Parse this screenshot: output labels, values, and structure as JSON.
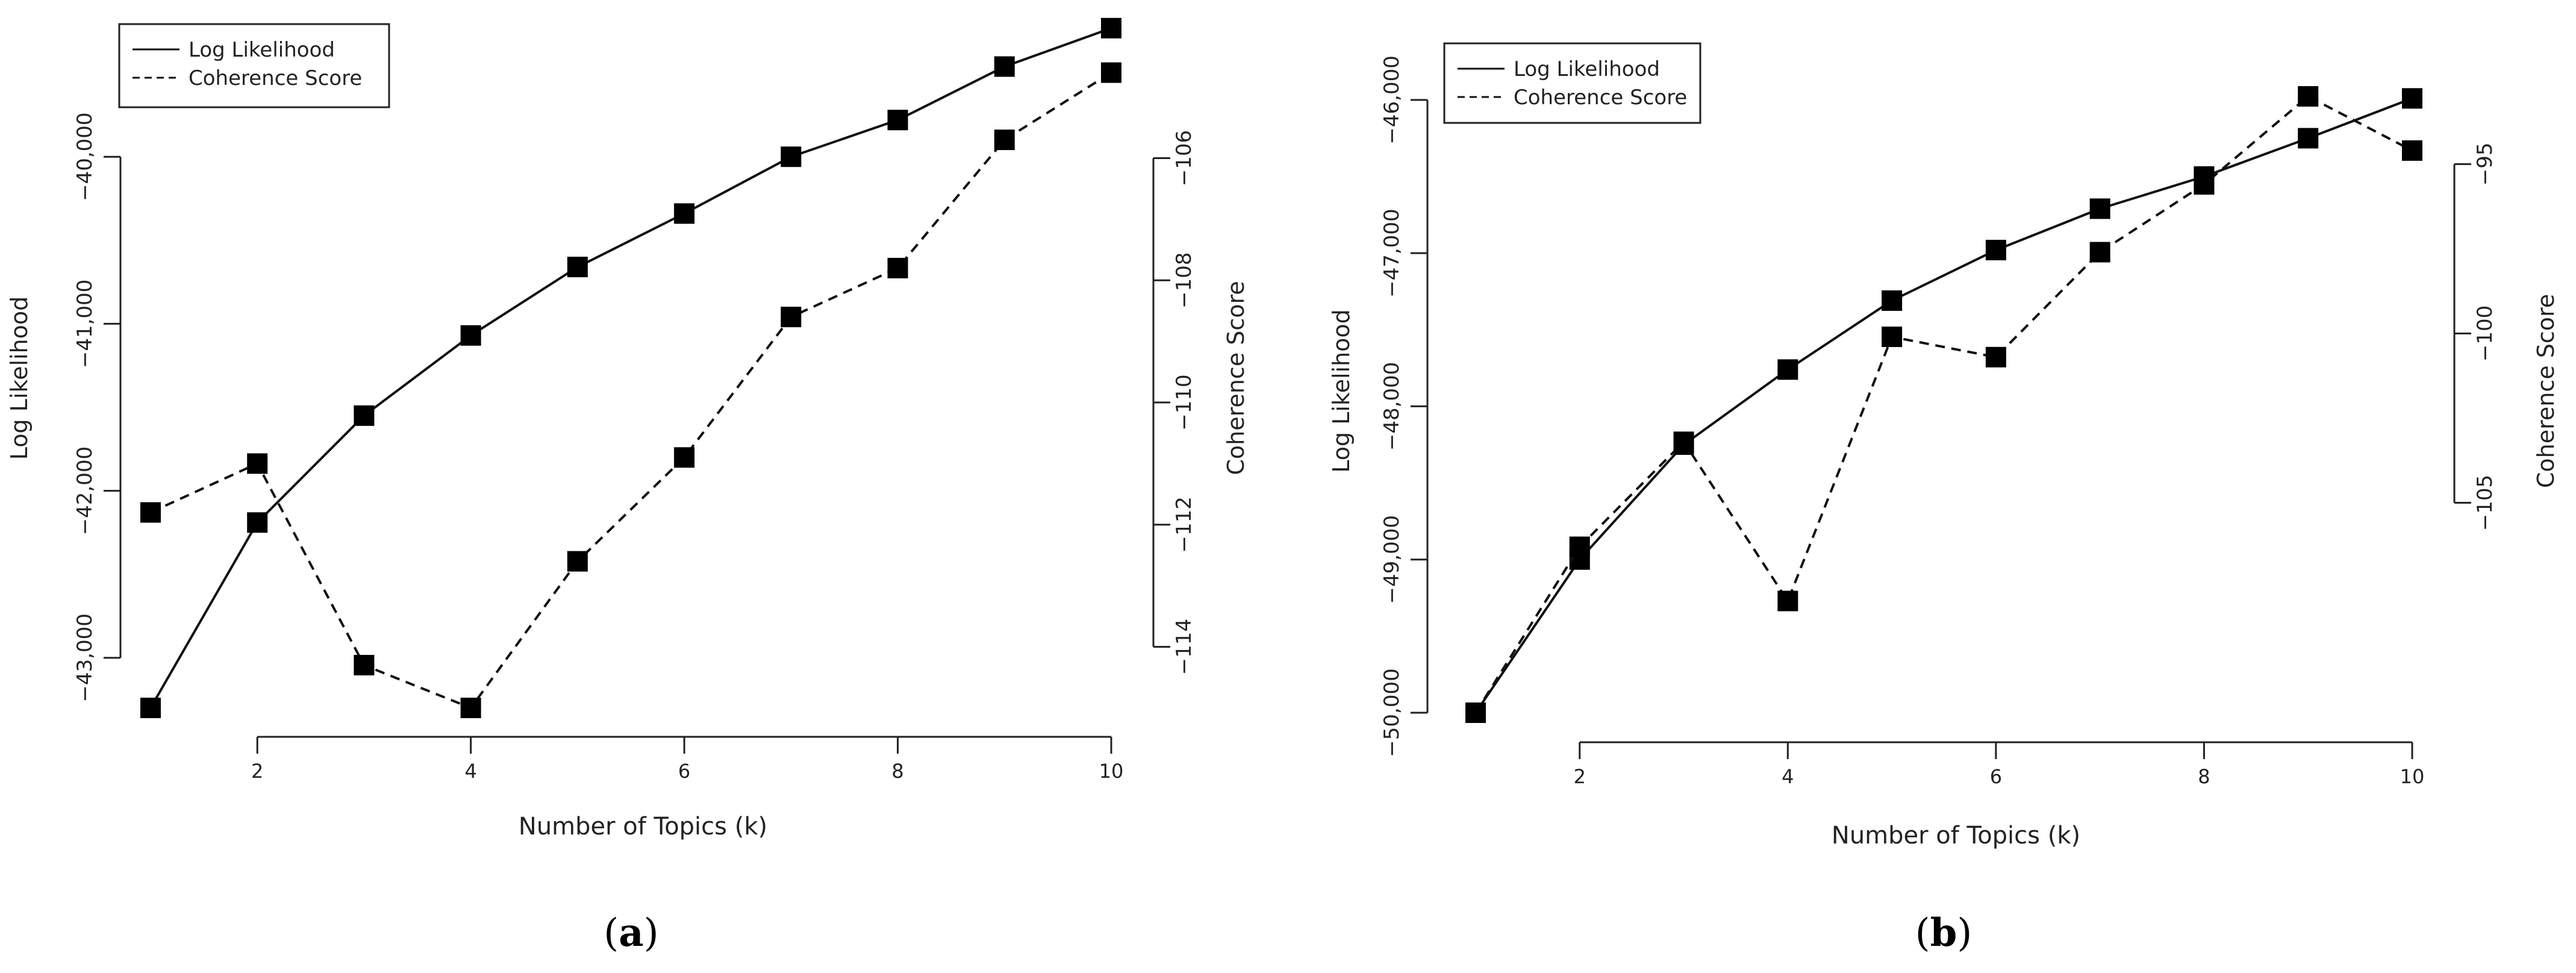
{
  "chart_data": [
    {
      "type": "line",
      "panel_label": "a",
      "xlabel": "Number of Topics (k)",
      "ylabel": "Log Likelihood",
      "y2label": "Coherence Score",
      "x": [
        1,
        2,
        3,
        4,
        5,
        6,
        7,
        8,
        9,
        10
      ],
      "x_ticks": [
        2,
        4,
        6,
        8,
        10
      ],
      "x_tick_labels": [
        "2",
        "4",
        "6",
        "8",
        "10"
      ],
      "ylim": [
        -43300,
        -39350
      ],
      "y_ticks": [
        -43000,
        -42000,
        -41000,
        -40000
      ],
      "y_tick_labels": [
        "−43,000",
        "−42,000",
        "−41,000",
        "−40,000"
      ],
      "y2lim": [
        -115,
        -104.2
      ],
      "y2_ticks": [
        -114,
        -112,
        -110,
        -108,
        -106
      ],
      "y2_tick_labels": [
        "−114",
        "−112",
        "−110",
        "−108",
        "−106"
      ],
      "legend_position": "top-left",
      "series": [
        {
          "name": "Log Likelihood",
          "axis": "left",
          "style": "solid",
          "values": [
            -43300,
            -42190,
            -41550,
            -41070,
            -40660,
            -40340,
            -40000,
            -39780,
            -39460,
            -39230
          ]
        },
        {
          "name": "Coherence Score",
          "axis": "right",
          "style": "dashed",
          "values": [
            -111.8,
            -111.0,
            -114.3,
            -115.0,
            -112.6,
            -110.9,
            -108.6,
            -107.8,
            -105.7,
            -104.6
          ]
        }
      ]
    },
    {
      "type": "line",
      "panel_label": "b",
      "xlabel": "Number of Topics (k)",
      "ylabel": "Log Likelihood",
      "y2label": "Coherence Score",
      "x": [
        1,
        2,
        3,
        4,
        5,
        6,
        7,
        8,
        9,
        10
      ],
      "x_ticks": [
        2,
        4,
        6,
        8,
        10
      ],
      "x_tick_labels": [
        "2",
        "4",
        "6",
        "8",
        "10"
      ],
      "ylim": [
        -50000,
        -45800
      ],
      "y_ticks": [
        -50000,
        -49000,
        -48000,
        -47000,
        -46000
      ],
      "y_tick_labels": [
        "−50,000",
        "−49,000",
        "−48,000",
        "−47,000",
        "−46,000"
      ],
      "y2lim": [
        -111.2,
        -92.2
      ],
      "y2_ticks": [
        -105,
        -100,
        -95
      ],
      "y2_tick_labels": [
        "−105",
        "−100",
        "−95"
      ],
      "legend_position": "top-left",
      "series": [
        {
          "name": "Log Likelihood",
          "axis": "left",
          "style": "solid",
          "values": [
            -50000,
            -49000,
            -48250,
            -47760,
            -47310,
            -46980,
            -46710,
            -46500,
            -46250,
            -45990
          ]
        },
        {
          "name": "Coherence Score",
          "axis": "right",
          "style": "dashed",
          "values": [
            -111.2,
            -106.3,
            -103.2,
            -107.9,
            -100.1,
            -100.7,
            -97.6,
            -95.6,
            -93.0,
            -94.6
          ]
        }
      ]
    }
  ]
}
